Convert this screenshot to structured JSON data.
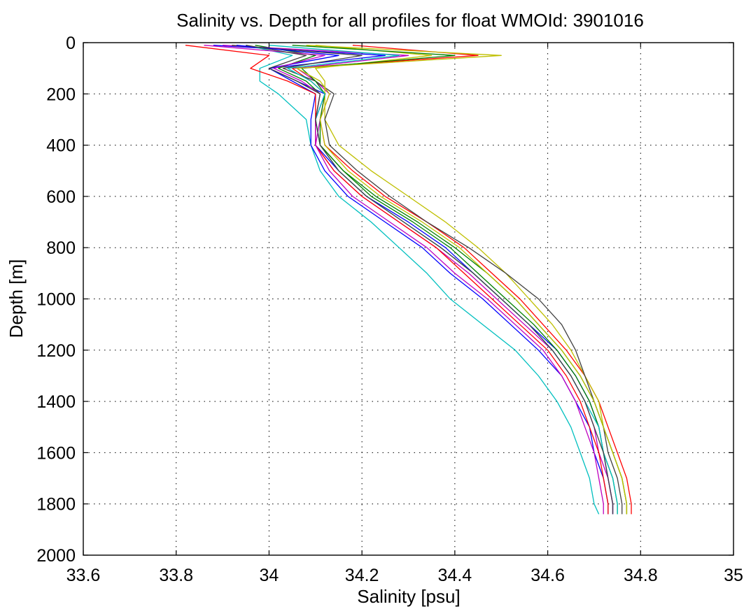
{
  "chart_data": {
    "type": "line",
    "title": "Salinity vs. Depth for all profiles for float WMOId: 3901016",
    "xlabel": "Salinity [psu]",
    "ylabel": "Depth [m]",
    "xlim": [
      33.6,
      35
    ],
    "ylim": [
      0,
      2000
    ],
    "y_reversed": true,
    "grid": true,
    "xticks": [
      "33.6",
      "33.8",
      "34",
      "34.2",
      "34.4",
      "34.6",
      "34.8",
      "35"
    ],
    "yticks": [
      "0",
      "200",
      "400",
      "600",
      "800",
      "1000",
      "1200",
      "1400",
      "1600",
      "1800",
      "2000"
    ],
    "depth_levels": [
      10,
      50,
      100,
      150,
      200,
      300,
      400,
      500,
      600,
      700,
      800,
      900,
      1000,
      1100,
      1200,
      1300,
      1400,
      1500,
      1600,
      1700,
      1800,
      1840
    ],
    "series_colors": [
      "#0000ff",
      "#008000",
      "#ff0000",
      "#00bfbf",
      "#bf00bf",
      "#bfbf00",
      "#404040"
    ],
    "series": [
      {
        "values": [
          33.88,
          34.25,
          34.0,
          34.06,
          34.12,
          34.1,
          34.1,
          34.15,
          34.21,
          34.3,
          34.38,
          34.44,
          34.5,
          34.56,
          34.62,
          34.66,
          34.69,
          34.71,
          34.72,
          34.73,
          34.74,
          34.74
        ]
      },
      {
        "values": [
          33.97,
          34.1,
          34.02,
          34.08,
          34.11,
          34.1,
          34.11,
          34.16,
          34.22,
          34.31,
          34.39,
          34.45,
          34.51,
          34.57,
          34.62,
          34.66,
          34.69,
          34.71,
          34.72,
          34.74,
          34.75,
          34.75
        ]
      },
      {
        "values": [
          34.18,
          34.45,
          34.05,
          34.09,
          34.12,
          34.11,
          34.12,
          34.18,
          34.25,
          34.34,
          34.42,
          34.48,
          34.54,
          34.59,
          34.64,
          34.68,
          34.71,
          34.73,
          34.75,
          34.77,
          34.78,
          34.78
        ]
      },
      {
        "values": [
          33.95,
          34.05,
          33.98,
          33.98,
          34.02,
          34.08,
          34.09,
          34.11,
          34.15,
          34.22,
          34.28,
          34.34,
          34.39,
          34.46,
          34.53,
          34.58,
          34.62,
          34.65,
          34.67,
          34.69,
          34.7,
          34.71
        ]
      },
      {
        "values": [
          33.9,
          34.3,
          34.06,
          34.1,
          34.13,
          34.11,
          34.1,
          34.14,
          34.2,
          34.28,
          34.36,
          34.43,
          34.49,
          34.55,
          34.61,
          34.65,
          34.68,
          34.7,
          34.71,
          34.73,
          34.74,
          34.74
        ]
      },
      {
        "values": [
          34.1,
          34.35,
          34.1,
          34.12,
          34.12,
          34.12,
          34.15,
          34.22,
          34.3,
          34.38,
          34.45,
          34.51,
          34.56,
          34.61,
          34.65,
          34.68,
          34.71,
          34.72,
          34.74,
          34.76,
          34.77,
          34.77
        ]
      },
      {
        "values": [
          33.92,
          34.2,
          34.03,
          34.1,
          34.14,
          34.12,
          34.13,
          34.19,
          34.26,
          34.34,
          34.43,
          34.51,
          34.58,
          34.63,
          34.66,
          34.68,
          34.7,
          34.72,
          34.73,
          34.75,
          34.76,
          34.76
        ]
      },
      {
        "values": [
          33.93,
          34.15,
          34.0,
          34.05,
          34.1,
          34.09,
          34.09,
          34.12,
          34.17,
          34.25,
          34.33,
          34.39,
          34.46,
          34.52,
          34.58,
          34.63,
          34.66,
          34.69,
          34.7,
          34.72,
          34.73,
          34.73
        ]
      },
      {
        "values": [
          34.05,
          34.4,
          34.07,
          34.1,
          34.12,
          34.11,
          34.11,
          34.16,
          34.23,
          34.32,
          34.4,
          34.47,
          34.53,
          34.58,
          34.63,
          34.67,
          34.7,
          34.72,
          34.74,
          34.76,
          34.77,
          34.77
        ]
      },
      {
        "values": [
          33.82,
          34.0,
          33.96,
          34.04,
          34.1,
          34.1,
          34.1,
          34.14,
          34.2,
          34.28,
          34.36,
          34.42,
          34.48,
          34.54,
          34.6,
          34.64,
          34.67,
          34.69,
          34.71,
          34.72,
          34.73,
          34.73
        ]
      },
      {
        "values": [
          34.0,
          34.28,
          34.04,
          34.09,
          34.12,
          34.1,
          34.11,
          34.15,
          34.21,
          34.29,
          34.37,
          34.44,
          34.5,
          34.56,
          34.61,
          34.65,
          34.68,
          34.71,
          34.72,
          34.74,
          34.75,
          34.75
        ]
      },
      {
        "values": [
          33.86,
          34.12,
          34.01,
          34.07,
          34.11,
          34.1,
          34.1,
          34.13,
          34.18,
          34.26,
          34.34,
          34.4,
          34.47,
          34.53,
          34.59,
          34.63,
          34.66,
          34.68,
          34.7,
          34.71,
          34.72,
          34.72
        ]
      },
      {
        "values": [
          34.08,
          34.5,
          34.06,
          34.11,
          34.13,
          34.11,
          34.12,
          34.17,
          34.24,
          34.33,
          34.41,
          34.47,
          34.53,
          34.58,
          34.63,
          34.67,
          34.7,
          34.72,
          34.74,
          34.76,
          34.77,
          34.77
        ]
      },
      {
        "values": [
          33.95,
          34.08,
          34.0,
          34.06,
          34.11,
          34.1,
          34.11,
          34.15,
          34.21,
          34.29,
          34.37,
          34.44,
          34.5,
          34.56,
          34.61,
          34.65,
          34.68,
          34.7,
          34.72,
          34.73,
          34.74,
          34.74
        ]
      }
    ]
  }
}
